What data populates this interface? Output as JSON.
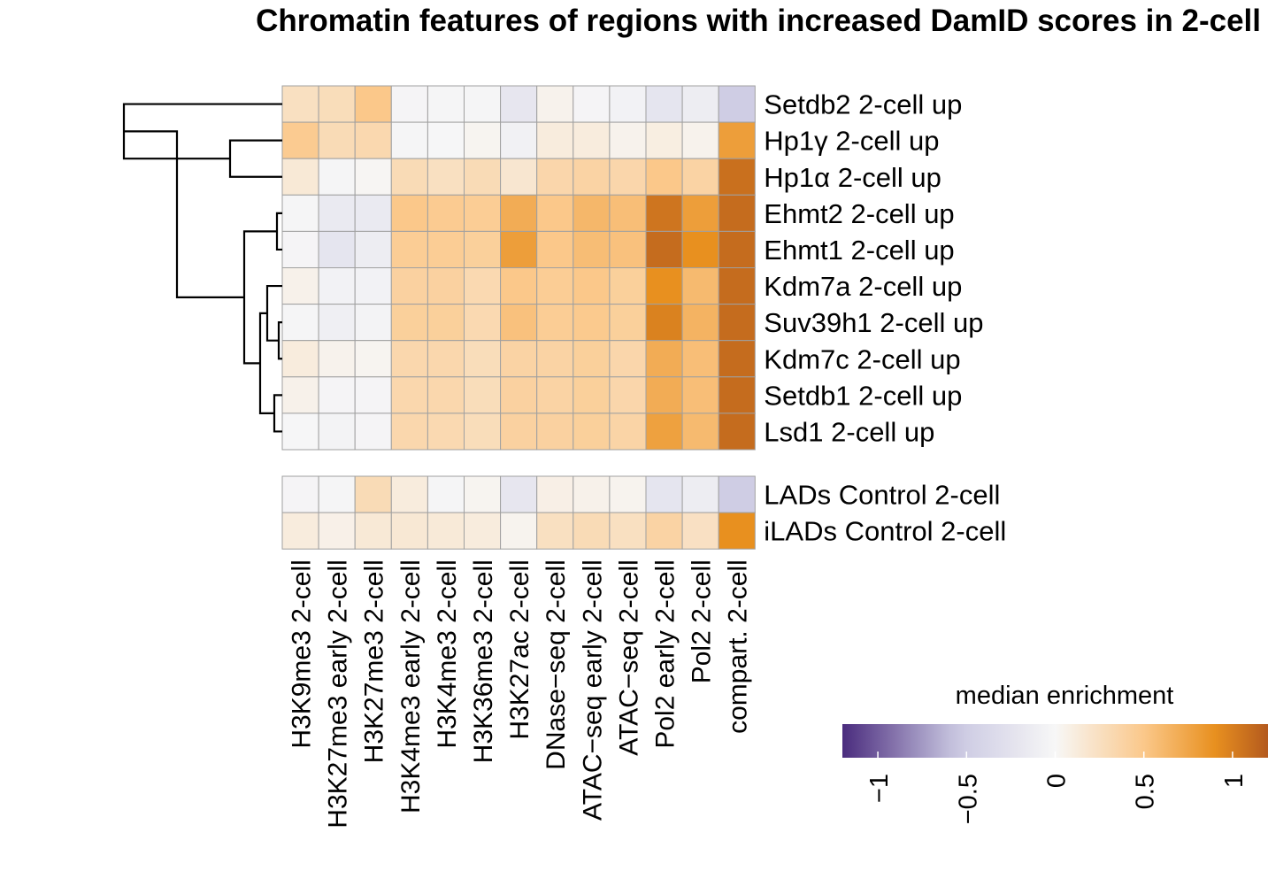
{
  "chart_data": {
    "type": "heatmap",
    "title": "Chromatin features of regions with increased DamID scores in 2-cell",
    "columns": [
      "H3K9me3 2-cell",
      "H3K27me3 early 2-cell",
      "H3K27me3 2-cell",
      "H3K4me3 early 2-cell",
      "H3K4me3 2-cell",
      "H3K36me3 2-cell",
      "H3K27ac 2-cell",
      "DNase−seq 2-cell",
      "ATAC−seq early 2-cell",
      "ATAC−seq 2-cell",
      "Pol2 early 2-cell",
      "Pol2 2-cell",
      "compart. 2-cell"
    ],
    "rows": [
      "Setdb2 2-cell up",
      "Hp1γ 2-cell up",
      "Hp1α 2-cell up",
      "Ehmt2 2-cell up",
      "Ehmt1 2-cell up",
      "Kdm7a 2-cell up",
      "Suv39h1 2-cell up",
      "Kdm7c 2-cell up",
      "Setdb1 2-cell up",
      "Lsd1 2-cell up"
    ],
    "values": [
      [
        0.25,
        0.28,
        0.5,
        -0.03,
        -0.02,
        -0.02,
        -0.2,
        0.05,
        -0.03,
        -0.06,
        -0.22,
        -0.12,
        -0.5
      ],
      [
        0.47,
        0.3,
        0.33,
        -0.02,
        -0.01,
        0.03,
        -0.07,
        0.12,
        0.12,
        0.05,
        0.1,
        0.05,
        0.8
      ],
      [
        0.15,
        -0.02,
        0.02,
        0.3,
        0.25,
        0.3,
        0.18,
        0.35,
        0.38,
        0.35,
        0.5,
        0.38,
        1.08
      ],
      [
        -0.02,
        -0.16,
        -0.16,
        0.5,
        0.47,
        0.45,
        0.7,
        0.5,
        0.62,
        0.57,
        1.05,
        0.8,
        1.1
      ],
      [
        -0.03,
        -0.22,
        -0.12,
        0.45,
        0.45,
        0.42,
        0.8,
        0.5,
        0.58,
        0.55,
        1.1,
        0.9,
        1.1
      ],
      [
        0.06,
        -0.06,
        -0.06,
        0.4,
        0.4,
        0.32,
        0.5,
        0.45,
        0.5,
        0.42,
        0.9,
        0.6,
        1.1
      ],
      [
        -0.02,
        -0.1,
        -0.05,
        0.42,
        0.42,
        0.32,
        0.55,
        0.45,
        0.48,
        0.42,
        0.98,
        0.65,
        1.1
      ],
      [
        0.12,
        0.05,
        0.03,
        0.34,
        0.34,
        0.28,
        0.38,
        0.38,
        0.42,
        0.35,
        0.7,
        0.57,
        1.1
      ],
      [
        0.06,
        -0.03,
        -0.03,
        0.34,
        0.34,
        0.28,
        0.4,
        0.38,
        0.42,
        0.35,
        0.7,
        0.57,
        1.1
      ],
      [
        -0.01,
        -0.05,
        -0.03,
        0.34,
        0.32,
        0.28,
        0.4,
        0.4,
        0.42,
        0.37,
        0.78,
        0.6,
        1.1
      ]
    ],
    "control_rows": [
      "LADs  Control 2-cell",
      "iLADs Control 2-cell"
    ],
    "control_values": [
      [
        -0.03,
        -0.02,
        0.3,
        0.12,
        -0.02,
        0.03,
        -0.2,
        0.08,
        0.06,
        0.04,
        -0.22,
        -0.12,
        -0.5
      ],
      [
        0.12,
        0.07,
        0.15,
        0.16,
        0.14,
        0.12,
        0.04,
        0.25,
        0.3,
        0.25,
        0.38,
        0.24,
        0.9
      ]
    ],
    "row_dendrogram": true,
    "legend": {
      "title": "median enrichment",
      "placement": "bottom-right",
      "range": [
        -1.2,
        1.2
      ],
      "ticks": [
        -1,
        -0.5,
        0,
        0.5,
        1
      ],
      "tick_labels": [
        "−1",
        "−0.5",
        "0",
        "0.5",
        "1"
      ]
    },
    "colors": {
      "low": "#4a2c7e",
      "mid_low": "#cbc9e2",
      "neutral": "#f7f7f7",
      "mid_high": "#fbc88a",
      "high": "#e8901f",
      "max": "#b45a1e",
      "cell_border": "#a0a0a0",
      "dendrogram": "#000000"
    }
  }
}
